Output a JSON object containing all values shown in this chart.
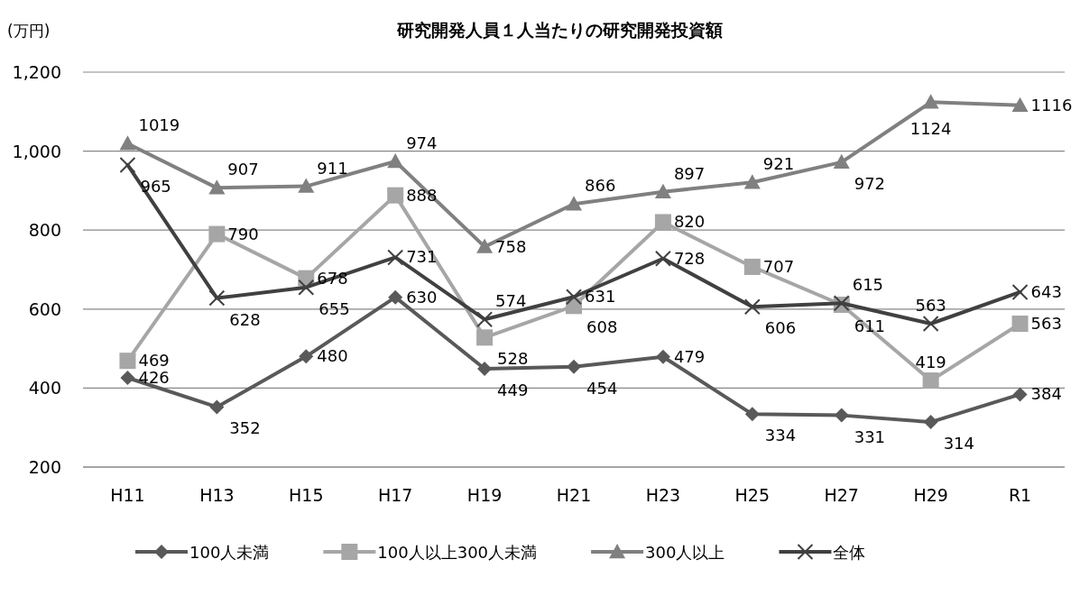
{
  "chart_data": {
    "type": "line",
    "title": "研究開発人員１人当たりの研究開発投資額",
    "ylabel": "(万円)",
    "categories": [
      "H11",
      "H13",
      "H15",
      "H17",
      "H19",
      "H21",
      "H23",
      "H25",
      "H27",
      "H29",
      "R1"
    ],
    "series": [
      {
        "name": "100人未満",
        "color": "#595959",
        "marker": "diamond",
        "values": [
          426,
          352,
          480,
          630,
          449,
          454,
          479,
          334,
          331,
          314,
          384
        ]
      },
      {
        "name": "100人以上300人未満",
        "color": "#a6a6a6",
        "marker": "square",
        "values": [
          469,
          790,
          678,
          888,
          528,
          608,
          820,
          707,
          611,
          419,
          563
        ]
      },
      {
        "name": "300人以上",
        "color": "#808080",
        "marker": "triangle",
        "values": [
          1019,
          907,
          911,
          974,
          758,
          866,
          897,
          921,
          972,
          1124,
          1116
        ]
      },
      {
        "name": "全体",
        "color": "#404040",
        "marker": "cross",
        "values": [
          965,
          628,
          655,
          731,
          574,
          631,
          728,
          606,
          615,
          563,
          643
        ]
      }
    ],
    "ylim": [
      200,
      1200
    ],
    "yticks": [
      {
        "value": 200,
        "label": "200"
      },
      {
        "value": 400,
        "label": "400"
      },
      {
        "value": 600,
        "label": "600"
      },
      {
        "value": 800,
        "label": "800"
      },
      {
        "value": 1000,
        "label": "1,000"
      },
      {
        "value": 1200,
        "label": "1,200"
      }
    ],
    "grid": "y",
    "legend": "bottom",
    "data_labels": true
  }
}
